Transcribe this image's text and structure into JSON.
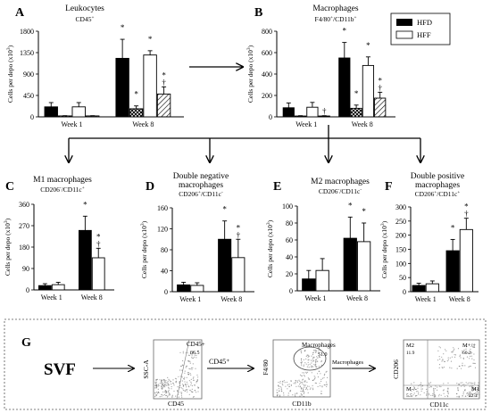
{
  "chart_data": [
    {
      "type": "bar",
      "panel_letter": "A",
      "title": "Leukocytes",
      "subtitle_html": "CD45<sup>+</sup>",
      "ylabel": "Cells per depo",
      "y_unit": "(x10",
      "y_unit_exp": "3",
      "y_unit_close": ")",
      "yticks": [
        0,
        450,
        900,
        1350,
        1800
      ],
      "ylim": [
        0,
        1800
      ],
      "categories": [
        "Week 1",
        "Week 8"
      ],
      "series": [
        {
          "name": "HFD",
          "style": "solid",
          "values": [
            210,
            1230
          ],
          "err": [
            90,
            400
          ]
        },
        {
          "name": "",
          "style": "crosshatch",
          "values": [
            20,
            170
          ],
          "err": [
            5,
            60
          ]
        },
        {
          "name": "HFF",
          "style": "open",
          "values": [
            210,
            1300
          ],
          "err": [
            90,
            90
          ]
        },
        {
          "name": "",
          "style": "hatch",
          "values": [
            20,
            480
          ],
          "err": [
            5,
            150
          ]
        }
      ],
      "annotations": [
        {
          "series": 0,
          "cat": 1,
          "text": "*"
        },
        {
          "series": 1,
          "cat": 1,
          "text": "*"
        },
        {
          "series": 2,
          "cat": 1,
          "text": "*"
        },
        {
          "series": 3,
          "cat": 1,
          "text": "*"
        },
        {
          "series": 3,
          "cat": 1,
          "text": "†",
          "row": 2
        }
      ]
    },
    {
      "type": "bar",
      "panel_letter": "B",
      "title": "Macrophages",
      "subtitle_html": "F4/80<sup>+</sup>/CD11b<sup>+</sup>",
      "ylabel": "Cells per depo",
      "y_unit": "(x10",
      "y_unit_exp": "3",
      "y_unit_close": ")",
      "yticks": [
        0,
        200,
        400,
        600,
        800
      ],
      "ylim": [
        0,
        800
      ],
      "categories": [
        "Week 1",
        "Week 8"
      ],
      "series": [
        {
          "name": "HFD",
          "style": "solid",
          "values": [
            85,
            550
          ],
          "err": [
            45,
            145
          ]
        },
        {
          "name": "",
          "style": "crosshatch",
          "values": [
            8,
            80
          ],
          "err": [
            3,
            30
          ]
        },
        {
          "name": "HFF",
          "style": "open",
          "values": [
            90,
            480
          ],
          "err": [
            45,
            80
          ]
        },
        {
          "name": "",
          "style": "hatch",
          "values": [
            8,
            175
          ],
          "err": [
            3,
            55
          ]
        }
      ],
      "annotations": [
        {
          "series": 0,
          "cat": 1,
          "text": "*"
        },
        {
          "series": 2,
          "cat": 1,
          "text": "*"
        },
        {
          "series": 1,
          "cat": 1,
          "text": "*"
        },
        {
          "series": 3,
          "cat": 1,
          "text": "*"
        },
        {
          "series": 3,
          "cat": 1,
          "text": "†",
          "row": 2
        },
        {
          "series": 3,
          "cat": 0,
          "text": "†"
        }
      ],
      "legend": [
        "HFD",
        "HFF"
      ],
      "legend_placement": "top-right"
    },
    {
      "type": "bar",
      "panel_letter": "C",
      "title": "M1 macrophages",
      "subtitle_html": "CD206<sup>-</sup>/CD11c<sup>+</sup>",
      "ylabel": "Cells per depo",
      "y_unit": "(x10",
      "y_unit_exp": "3",
      "y_unit_close": ")",
      "yticks": [
        0,
        90,
        180,
        270,
        360
      ],
      "ylim": [
        0,
        360
      ],
      "categories": [
        "Week 1",
        "Week 8"
      ],
      "series": [
        {
          "name": "HFD",
          "style": "solid",
          "values": [
            18,
            250
          ],
          "err": [
            8,
            60
          ]
        },
        {
          "name": "HFF",
          "style": "open",
          "values": [
            22,
            135
          ],
          "err": [
            10,
            40
          ]
        }
      ],
      "annotations": [
        {
          "series": 0,
          "cat": 1,
          "text": "*"
        },
        {
          "series": 1,
          "cat": 1,
          "text": "*"
        },
        {
          "series": 1,
          "cat": 1,
          "text": "†",
          "row": 2
        }
      ]
    },
    {
      "type": "bar",
      "panel_letter": "D",
      "title": "Double negative",
      "title_line2": "macrophages",
      "subtitle_html": "CD206<sup>+</sup>/CD11c<sup>-</sup>",
      "ylabel": "Cells per depo",
      "y_unit": "(x10",
      "y_unit_exp": "3",
      "y_unit_close": ")",
      "yticks": [
        0,
        40,
        80,
        120,
        160
      ],
      "ylim": [
        0,
        160
      ],
      "categories": [
        "Week 1",
        "Week 8"
      ],
      "series": [
        {
          "name": "HFD",
          "style": "solid",
          "values": [
            13,
            100
          ],
          "err": [
            5,
            35
          ]
        },
        {
          "name": "HFF",
          "style": "open",
          "values": [
            12,
            65
          ],
          "err": [
            5,
            35
          ]
        }
      ],
      "annotations": [
        {
          "series": 0,
          "cat": 1,
          "text": "*"
        },
        {
          "series": 1,
          "cat": 1,
          "text": "*"
        },
        {
          "series": 1,
          "cat": 1,
          "text": "†",
          "row": 2
        }
      ]
    },
    {
      "type": "bar",
      "panel_letter": "E",
      "title": "M2 macrophages",
      "subtitle_html": "CD206<sup>-</sup>/CD11c<sup>-</sup>",
      "ylabel": "Cells per depo",
      "y_unit": "(x10",
      "y_unit_exp": "3",
      "y_unit_close": ")",
      "yticks": [
        0,
        20,
        40,
        60,
        80,
        100
      ],
      "ylim": [
        0,
        100
      ],
      "categories": [
        "Week 1",
        "Week 8"
      ],
      "series": [
        {
          "name": "HFD",
          "style": "solid",
          "values": [
            14,
            62
          ],
          "err": [
            10,
            25
          ]
        },
        {
          "name": "HFF",
          "style": "open",
          "values": [
            24,
            58
          ],
          "err": [
            14,
            22
          ]
        }
      ],
      "annotations": [
        {
          "series": 0,
          "cat": 1,
          "text": "*"
        },
        {
          "series": 1,
          "cat": 1,
          "text": "*"
        }
      ]
    },
    {
      "type": "bar",
      "panel_letter": "F",
      "title": "Double positive",
      "title_line2": "macrophages",
      "subtitle_html": "CD206<sup>+</sup>/CD11c<sup>+</sup>",
      "ylabel": "Cells per depo",
      "y_unit": "(x10",
      "y_unit_exp": "3",
      "y_unit_close": ")",
      "yticks": [
        0,
        50,
        100,
        150,
        200,
        250,
        300
      ],
      "ylim": [
        0,
        300
      ],
      "categories": [
        "Week 1",
        "Week 8"
      ],
      "series": [
        {
          "name": "HFD",
          "style": "solid",
          "values": [
            22,
            145
          ],
          "err": [
            8,
            40
          ]
        },
        {
          "name": "HFF",
          "style": "open",
          "values": [
            28,
            220
          ],
          "err": [
            10,
            40
          ]
        }
      ],
      "annotations": [
        {
          "series": 0,
          "cat": 1,
          "text": "*"
        },
        {
          "series": 1,
          "cat": 1,
          "text": "*"
        },
        {
          "series": 1,
          "cat": 1,
          "text": "†",
          "row": 2
        }
      ]
    }
  ],
  "panel_g": {
    "letter": "G",
    "start_label": "SVF",
    "gate_arrow_1": "CD45⁺",
    "gate_arrow_2": "Macrophages",
    "plots": [
      {
        "xlabel": "CD45",
        "ylabel": "SSC-A",
        "gate_name": "CD45+",
        "gate_value": "66.5"
      },
      {
        "xlabel": "CD11b",
        "ylabel": "F4/80",
        "gate_name": "Macrophages",
        "gate_value": "51.0"
      },
      {
        "xlabel": "CD11c",
        "ylabel": "CD206",
        "quadrants": [
          {
            "name": "M2",
            "value": "11.9"
          },
          {
            "name": "M+/+",
            "value": "60.3"
          },
          {
            "name": "M-/-",
            "value": "5.5"
          },
          {
            "name": "M1",
            "value": "22.3"
          }
        ]
      }
    ]
  },
  "colors": {
    "ink": "#000000",
    "background": "#ffffff",
    "scatter_dot": "#444444",
    "scatter_box": "#666666"
  }
}
